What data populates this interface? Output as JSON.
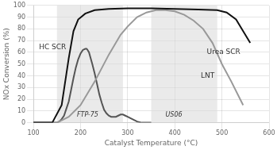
{
  "chart_data": {
    "type": "line",
    "title": "",
    "xlabel": "Catalyst Temperature (°C)",
    "ylabel": "NOx Conversion (%)",
    "xlim": [
      100,
      600
    ],
    "ylim": [
      0,
      100
    ],
    "xticks": [
      100,
      200,
      300,
      400,
      500,
      600
    ],
    "yticks": [
      0,
      10,
      20,
      30,
      40,
      50,
      60,
      70,
      80,
      90,
      100
    ],
    "grid": true,
    "spans": [
      {
        "x": [
          150,
          290
        ],
        "color": "#d8d8d8",
        "annotation": {
          "text": "FTP-75",
          "x": 215,
          "y": 4
        }
      },
      {
        "x": [
          350,
          490
        ],
        "color": "#d8d8d8",
        "annotation": {
          "text": "US06",
          "x": 398,
          "y": 4
        }
      }
    ],
    "series": [
      {
        "name": "Urea SCR",
        "color": "#111111",
        "x": [
          100,
          140,
          160,
          175,
          185,
          195,
          210,
          230,
          260,
          300,
          350,
          400,
          450,
          490,
          510,
          530,
          545,
          560
        ],
        "values": [
          0,
          0,
          15,
          55,
          78,
          88,
          93,
          96,
          97,
          97.5,
          97.5,
          97,
          96.5,
          96,
          94,
          88,
          78,
          68
        ],
        "annotation": {
          "x": 468,
          "y": 60
        }
      },
      {
        "name": "LNT",
        "color": "#999999",
        "x": [
          100,
          150,
          175,
          200,
          230,
          260,
          285,
          300,
          320,
          340,
          360,
          380,
          400,
          420,
          440,
          460,
          480,
          500,
          520,
          545
        ],
        "values": [
          0,
          0,
          5,
          15,
          35,
          58,
          75,
          82,
          90,
          94,
          96,
          96,
          95,
          92,
          87,
          80,
          68,
          50,
          35,
          15
        ],
        "annotation": {
          "x": 455,
          "y": 40
        }
      },
      {
        "name": "HC SCR",
        "color": "#555555",
        "x": [
          100,
          150,
          155,
          160,
          165,
          170,
          175,
          180,
          185,
          190,
          195,
          200,
          205,
          210,
          213,
          215,
          218,
          220,
          225,
          230,
          235,
          240,
          245,
          250,
          255,
          260,
          265,
          270,
          275,
          280,
          285,
          290,
          295,
          300,
          310,
          320,
          330,
          350
        ],
        "values": [
          0,
          0,
          1,
          3,
          6,
          12,
          18,
          28,
          38,
          47,
          54,
          59,
          62,
          63,
          63,
          62,
          60,
          57,
          50,
          42,
          33,
          24,
          17,
          11,
          8,
          6,
          5,
          5,
          5,
          6,
          7,
          7,
          6,
          5,
          3,
          1,
          0,
          0
        ],
        "annotation": {
          "x": 112,
          "y": 64
        }
      }
    ]
  }
}
